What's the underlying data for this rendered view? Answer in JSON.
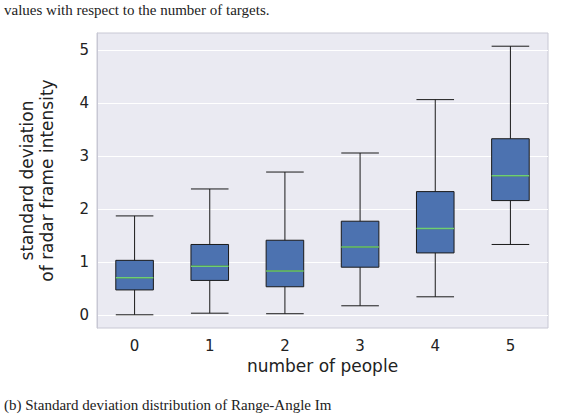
{
  "chart_data": {
    "type": "boxplot",
    "categories": [
      "0",
      "1",
      "2",
      "3",
      "4",
      "5"
    ],
    "values": [
      [
        0.0,
        0.47,
        0.7,
        1.03,
        1.87
      ],
      [
        0.03,
        0.65,
        0.92,
        1.33,
        2.38
      ],
      [
        0.02,
        0.53,
        0.83,
        1.41,
        2.7
      ],
      [
        0.17,
        0.9,
        1.28,
        1.77,
        3.06
      ],
      [
        0.34,
        1.17,
        1.63,
        2.33,
        4.07
      ],
      [
        1.33,
        2.16,
        2.63,
        3.33,
        5.08
      ]
    ],
    "color": "#4c72b0",
    "xlabel": "number of people",
    "ylabel": "standard deviation\nof radar frame intensity",
    "ylim": [
      -0.25,
      5.33
    ],
    "yticks": [
      0,
      1,
      2,
      3,
      4,
      5
    ],
    "grid": true,
    "annotations": [
      "values with respect to the number of targets.",
      "(b) Standard deviation distribution of Range-Angle Im"
    ]
  }
}
